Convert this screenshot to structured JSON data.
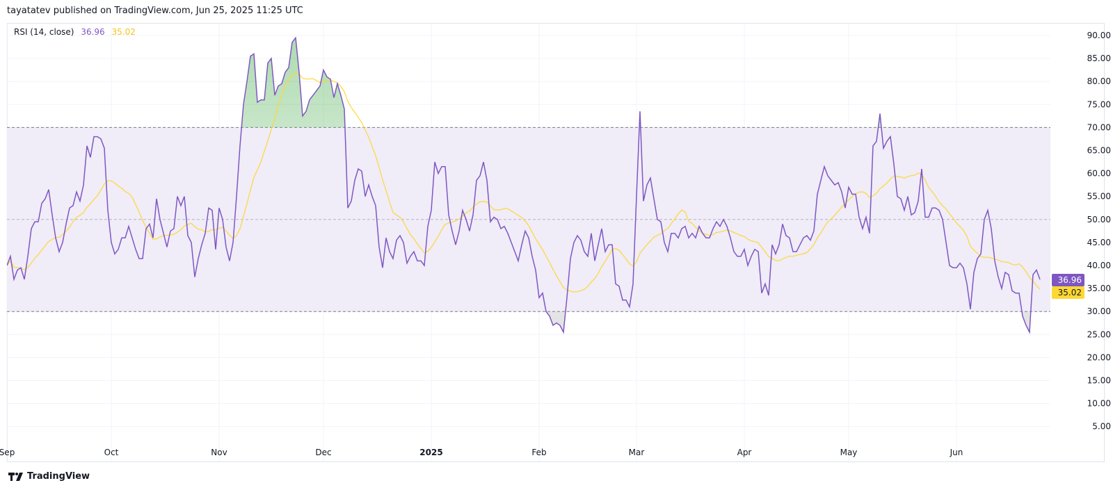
{
  "header": {
    "publisher_line": "tayatatev published on TradingView.com, Jun 25, 2025 11:25 UTC"
  },
  "legend": {
    "indicator": "RSI (14, close)",
    "rsi_value": "36.96",
    "ma_value": "35.02"
  },
  "footer": {
    "brand": "TradingView"
  },
  "colors": {
    "rsi": "#7e57c2",
    "ma": "#fdd835",
    "band": "#f0ecf8",
    "overbought_fill": "#4caf50",
    "oversold_fill": "#9e9e9e"
  },
  "chart_data": {
    "type": "line",
    "ylim": [
      0,
      95
    ],
    "y_ticks": [
      "90.00",
      "85.00",
      "80.00",
      "75.00",
      "70.00",
      "65.00",
      "60.00",
      "55.00",
      "50.00",
      "45.00",
      "40.00",
      "35.00",
      "30.00",
      "25.00",
      "20.00",
      "15.00",
      "10.00",
      "5.00"
    ],
    "x_ticks": [
      {
        "label": "Sep",
        "date": "2024-09-01"
      },
      {
        "label": "Oct",
        "date": "2024-10-01"
      },
      {
        "label": "Nov",
        "date": "2024-11-01"
      },
      {
        "label": "Dec",
        "date": "2024-12-01"
      },
      {
        "label": "2025",
        "date": "2025-01-01",
        "bold": true
      },
      {
        "label": "Feb",
        "date": "2025-02-01"
      },
      {
        "label": "Mar",
        "date": "2025-03-01"
      },
      {
        "label": "Apr",
        "date": "2025-04-01"
      },
      {
        "label": "May",
        "date": "2025-05-01"
      },
      {
        "label": "Jun",
        "date": "2025-06-01"
      }
    ],
    "levels": {
      "upper": 70,
      "middle": 50,
      "lower": 30
    },
    "grid": true,
    "series": [
      {
        "name": "RSI",
        "last_label": "36.96",
        "values": [
          40,
          42,
          37,
          39,
          39.5,
          37,
          42,
          48,
          49.5,
          49.5,
          53.5,
          54.5,
          56.5,
          51,
          46,
          43,
          45,
          49,
          52.5,
          53,
          56,
          54,
          57.5,
          66,
          63.5,
          68,
          68,
          67.5,
          65.5,
          52,
          45,
          42.5,
          43.5,
          46,
          46,
          48.5,
          46,
          43.5,
          41.5,
          41.5,
          48,
          49,
          46,
          54.5,
          50,
          47,
          44,
          47.5,
          48,
          55,
          53,
          55,
          46.5,
          45,
          37.5,
          41.5,
          44.5,
          47,
          52.5,
          52,
          43.5,
          52.5,
          50,
          44,
          41,
          45,
          55,
          66,
          75,
          80,
          85.5,
          86,
          75.5,
          76,
          76,
          84,
          85,
          77,
          79,
          79.5,
          82,
          83,
          88.5,
          89.5,
          82,
          72.5,
          73.5,
          76,
          77,
          78,
          79,
          82.5,
          81,
          80.5,
          76.5,
          79.5,
          77,
          74,
          52.5,
          54,
          58.5,
          61,
          60.5,
          55,
          57.5,
          55,
          53,
          44,
          39.5,
          46,
          43,
          41.5,
          45.5,
          46.5,
          45,
          40.5,
          42,
          43,
          41,
          41,
          40,
          48.5,
          52,
          62.5,
          60,
          61.5,
          61.5,
          51,
          47.5,
          44.5,
          47.5,
          52,
          50,
          47.5,
          51,
          58.5,
          59.5,
          62.5,
          58.5,
          49.5,
          50.5,
          50,
          48,
          48.5,
          47,
          45,
          43,
          41,
          44.5,
          47.5,
          46,
          42,
          39,
          33,
          34,
          30,
          29,
          27,
          27.5,
          27,
          25.5,
          33,
          41.5,
          45,
          46.5,
          45.5,
          43,
          42,
          47,
          41,
          44.5,
          48,
          43,
          44.5,
          44.5,
          36,
          35.5,
          32.5,
          32.5,
          31,
          36,
          55,
          73.5,
          54,
          57.5,
          59,
          54.5,
          50,
          49.5,
          45,
          43,
          47,
          47,
          46,
          48,
          48.5,
          46,
          47,
          46,
          48.5,
          47,
          46,
          46,
          48,
          49.5,
          48.5,
          50,
          48.5,
          46,
          43,
          42,
          42,
          43.5,
          40,
          42,
          43.5,
          43,
          34,
          36,
          33.5,
          44.5,
          42.5,
          44.5,
          49,
          46.5,
          46,
          43,
          43,
          44.5,
          46,
          46.5,
          45.5,
          47.5,
          55.5,
          58.5,
          61.5,
          59.5,
          58.5,
          57.5,
          58,
          56,
          52.5,
          57,
          55.5,
          55.5,
          50.5,
          48,
          50.5,
          47,
          66,
          67,
          73,
          65.5,
          67,
          68,
          62,
          55,
          54.5,
          52,
          55,
          51,
          51.5,
          54,
          61,
          50.5,
          50.5,
          52.5,
          52.5,
          52,
          50,
          45,
          40,
          39.5,
          39.5,
          40.5,
          39.5,
          36,
          30.5,
          38.5,
          41.5,
          42.5,
          50,
          52,
          48,
          41,
          37.5,
          35,
          38.5,
          38,
          34.5,
          34,
          34,
          29,
          27,
          25.5,
          38,
          39,
          36.96
        ]
      },
      {
        "name": "RSI-based MA",
        "last_label": "35.02"
      }
    ]
  }
}
